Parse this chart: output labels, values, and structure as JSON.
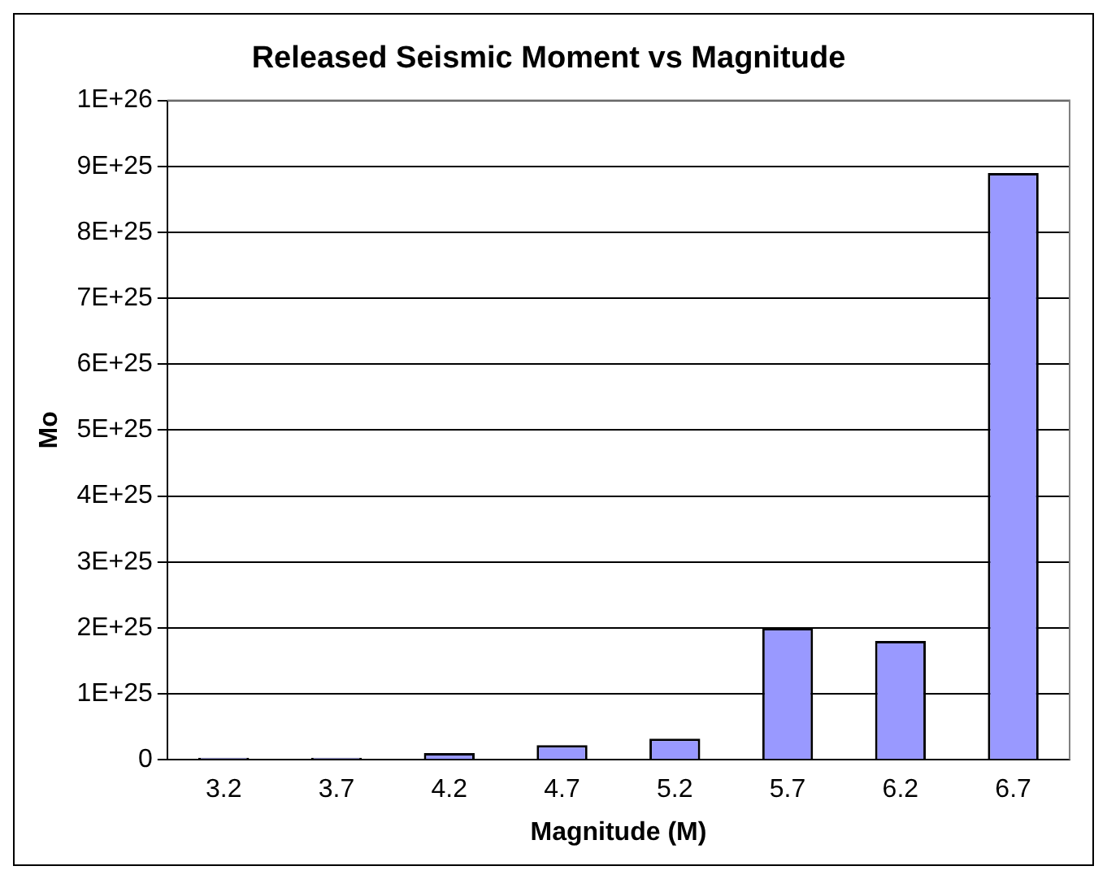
{
  "chart_data": {
    "type": "bar",
    "title": "Released Seismic Moment vs Magnitude",
    "xlabel": "Magnitude (M)",
    "ylabel": "Mo",
    "categories": [
      "3.2",
      "3.7",
      "4.2",
      "4.7",
      "5.2",
      "5.7",
      "6.2",
      "6.7"
    ],
    "values": [
      3e+23,
      3e+23,
      1e+24,
      2.2e+24,
      3.2e+24,
      2e+25,
      1.8e+25,
      8.9e+25
    ],
    "color": "#9999ff",
    "ylim": [
      0,
      1e+26
    ],
    "yticks": [
      0,
      {
        "value": 1e+25,
        "label": "1E+25"
      },
      {
        "value": 2e+25,
        "label": "2E+25"
      },
      {
        "value": 3e+25,
        "label": "3E+25"
      },
      {
        "value": 4e+25,
        "label": "4E+25"
      },
      {
        "value": 5e+25,
        "label": "5E+25"
      },
      {
        "value": 6e+25,
        "label": "6E+25"
      },
      {
        "value": 7e+25,
        "label": "7E+25"
      },
      {
        "value": 8e+25,
        "label": "8E+25"
      },
      {
        "value": 9e+25,
        "label": "9E+25"
      },
      {
        "value": 1e+26,
        "label": "1E+26"
      }
    ],
    "grid": "y",
    "legend": false
  }
}
